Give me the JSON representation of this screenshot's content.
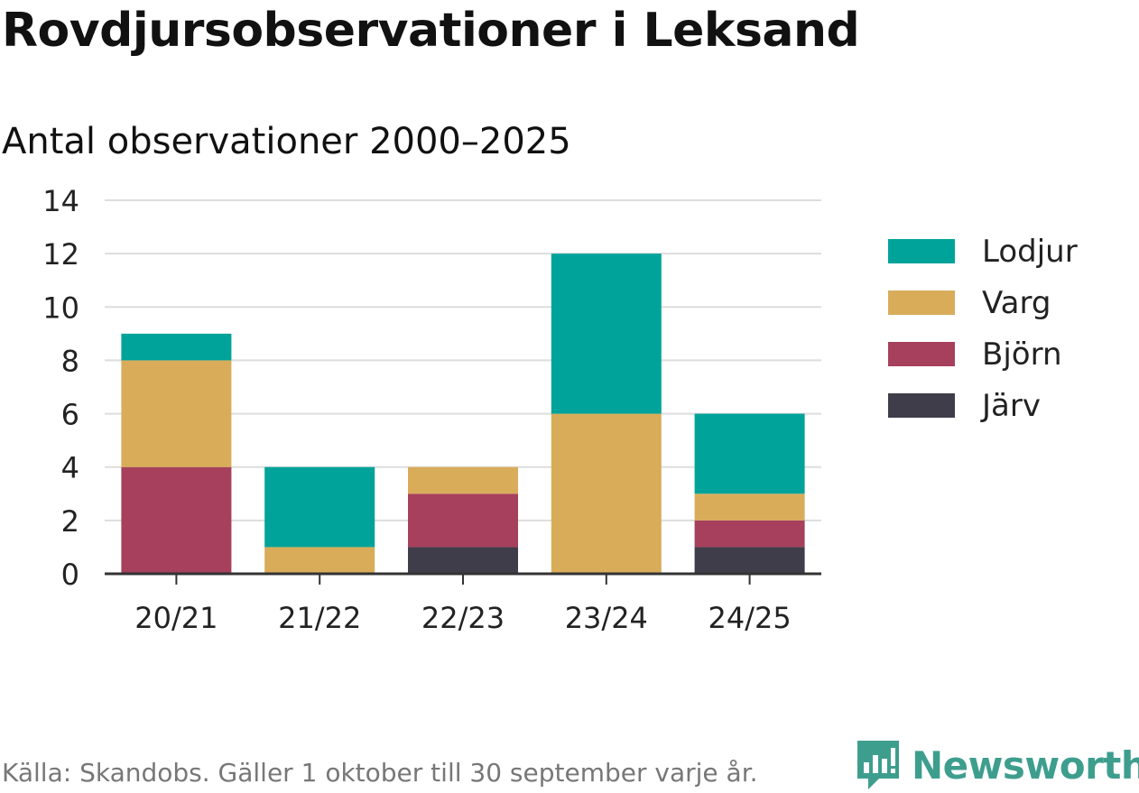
{
  "title": "Rovdjursobservationer i Leksand",
  "subtitle": "Antal observationer 2000–2025",
  "source": "Källa: Skandobs. Gäller 1 oktober till 30 september varje år.",
  "brand": {
    "name": "Newsworthy",
    "icon": "newsworthy-logo-icon"
  },
  "colors": {
    "Lodjur": "#00a39a",
    "Varg": "#d9ac5a",
    "Björn": "#a6405c",
    "Järv": "#403d4a"
  },
  "chart_data": {
    "type": "bar",
    "stacked": true,
    "categories": [
      "20/21",
      "21/22",
      "22/23",
      "23/24",
      "24/25"
    ],
    "series": [
      {
        "name": "Järv",
        "values": [
          0,
          0,
          1,
          0,
          1
        ]
      },
      {
        "name": "Björn",
        "values": [
          4,
          0,
          2,
          0,
          1
        ]
      },
      {
        "name": "Varg",
        "values": [
          4,
          1,
          1,
          6,
          1
        ]
      },
      {
        "name": "Lodjur",
        "values": [
          1,
          3,
          0,
          6,
          3
        ]
      }
    ],
    "legend_order": [
      "Lodjur",
      "Varg",
      "Björn",
      "Järv"
    ],
    "legend_position": "right",
    "ylim": [
      0,
      14
    ],
    "yticks": [
      0,
      2,
      4,
      6,
      8,
      10,
      12,
      14
    ],
    "grid": true,
    "xlabel": "",
    "ylabel": ""
  }
}
